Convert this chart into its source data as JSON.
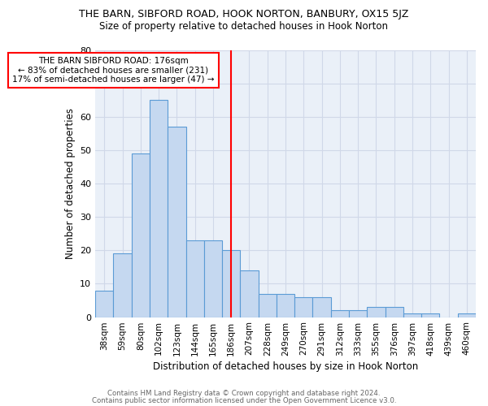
{
  "title": "THE BARN, SIBFORD ROAD, HOOK NORTON, BANBURY, OX15 5JZ",
  "subtitle": "Size of property relative to detached houses in Hook Norton",
  "xlabel": "Distribution of detached houses by size in Hook Norton",
  "ylabel": "Number of detached properties",
  "bin_edges": [
    "38sqm",
    "59sqm",
    "80sqm",
    "102sqm",
    "123sqm",
    "144sqm",
    "165sqm",
    "186sqm",
    "207sqm",
    "228sqm",
    "249sqm",
    "270sqm",
    "291sqm",
    "312sqm",
    "333sqm",
    "355sqm",
    "376sqm",
    "397sqm",
    "418sqm",
    "439sqm",
    "460sqm"
  ],
  "values": [
    8,
    19,
    49,
    65,
    57,
    23,
    23,
    20,
    14,
    7,
    7,
    6,
    6,
    2,
    2,
    3,
    3,
    1,
    1,
    0,
    1
  ],
  "bar_color": "#c5d8f0",
  "bar_edge_color": "#5b9bd5",
  "red_line_bin": 7,
  "annotation_text": "THE BARN SIBFORD ROAD: 176sqm\n← 83% of detached houses are smaller (231)\n17% of semi-detached houses are larger (47) →",
  "ylim": [
    0,
    80
  ],
  "yticks": [
    0,
    10,
    20,
    30,
    40,
    50,
    60,
    70,
    80
  ],
  "grid_color": "#d0d8e8",
  "background_color": "#eaf0f8",
  "footer1": "Contains HM Land Registry data © Crown copyright and database right 2024.",
  "footer2": "Contains public sector information licensed under the Open Government Licence v3.0."
}
